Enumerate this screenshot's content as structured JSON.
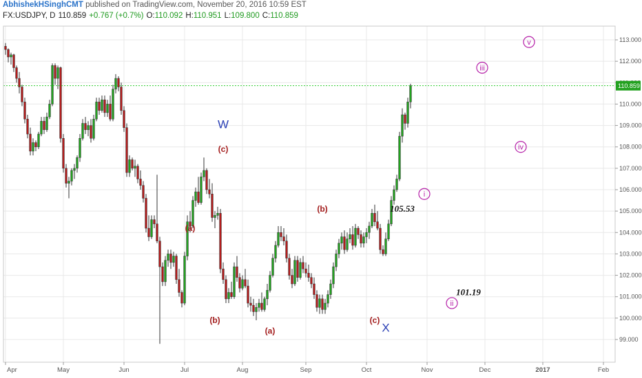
{
  "header": {
    "author": "AbhishekHSinghCMT",
    "published_text": "published on TradingView.com, November 20, 2016 10:59 EST",
    "symbol": "FX:USDJPY, D",
    "last": "110.859",
    "change": "+0.767 (+0.7%)",
    "o_label": "O:",
    "o": "110.092",
    "h_label": "H:",
    "h": "110.951",
    "l_label": "L:",
    "l": "109.800",
    "c_label": "C:",
    "c": "110.859"
  },
  "colors": {
    "up": "#22a11f",
    "down": "#b31b1b",
    "wick": "#333333",
    "grid": "#e8e8e8",
    "axis_text": "#555555",
    "wave_red": "#a31d1d",
    "wave_blue": "#2a3fb5",
    "wave_magenta": "#b51fa8",
    "price_line": "#2ecc2e",
    "price_tag": "#22a11f"
  },
  "chart_data": {
    "type": "candlestick",
    "symbol": "FX:USDJPY",
    "timeframe": "D",
    "ylim": [
      98.5,
      113.5
    ],
    "y_ticks": [
      99,
      100,
      101,
      102,
      103,
      104,
      105,
      106,
      107,
      108,
      109,
      110,
      111,
      112,
      113
    ],
    "y_tick_labels": [
      "99.000",
      "100.000",
      "101.000",
      "102.000",
      "103.000",
      "104.000",
      "105.000",
      "106.000",
      "107.000",
      "108.000",
      "109.000",
      "110.000",
      "111.000",
      "112.000",
      "113.000"
    ],
    "x_labels": [
      "Apr",
      "May",
      "Jun",
      "Jul",
      "Aug",
      "Sep",
      "Oct",
      "Nov",
      "Dec",
      "2017",
      "Feb"
    ],
    "x_label_bars": [
      0,
      21,
      43,
      65,
      86,
      109,
      131,
      153,
      174,
      195,
      217
    ],
    "total_slots": 222,
    "grid": true,
    "last_price": 110.859,
    "last_price_label": "110.859",
    "candles": [
      [
        112.7,
        112.85,
        112.3,
        112.55
      ],
      [
        112.55,
        112.6,
        111.95,
        112.2
      ],
      [
        112.2,
        112.4,
        111.85,
        112.3
      ],
      [
        112.3,
        112.35,
        111.5,
        111.7
      ],
      [
        111.7,
        111.8,
        111.0,
        111.2
      ],
      [
        111.2,
        111.5,
        110.5,
        110.8
      ],
      [
        110.8,
        110.9,
        109.9,
        110.1
      ],
      [
        110.1,
        110.3,
        109.1,
        109.3
      ],
      [
        109.3,
        109.5,
        108.4,
        108.6
      ],
      [
        108.6,
        108.9,
        107.6,
        107.8
      ],
      [
        107.8,
        108.4,
        107.6,
        108.2
      ],
      [
        108.2,
        108.3,
        107.8,
        108.0
      ],
      [
        108.0,
        108.7,
        107.9,
        108.6
      ],
      [
        108.6,
        109.4,
        108.5,
        109.2
      ],
      [
        109.2,
        109.4,
        108.6,
        108.8
      ],
      [
        108.8,
        109.6,
        108.7,
        109.4
      ],
      [
        109.4,
        110.2,
        109.3,
        110.0
      ],
      [
        110.0,
        111.9,
        109.9,
        111.8
      ],
      [
        111.8,
        111.9,
        110.9,
        111.2
      ],
      [
        111.2,
        111.8,
        110.7,
        111.7
      ],
      [
        111.7,
        111.75,
        108.2,
        108.4
      ],
      [
        108.4,
        108.6,
        106.8,
        107.0
      ],
      [
        107.0,
        107.2,
        106.1,
        106.3
      ],
      [
        106.3,
        106.6,
        105.6,
        106.4
      ],
      [
        106.4,
        107.0,
        106.2,
        106.9
      ],
      [
        106.9,
        107.2,
        106.5,
        107.0
      ],
      [
        107.0,
        107.6,
        106.8,
        107.5
      ],
      [
        107.5,
        108.6,
        107.3,
        108.4
      ],
      [
        108.4,
        109.3,
        108.3,
        109.1
      ],
      [
        109.1,
        109.4,
        108.6,
        108.8
      ],
      [
        108.8,
        109.2,
        108.5,
        109.0
      ],
      [
        109.0,
        109.3,
        108.2,
        108.4
      ],
      [
        108.4,
        109.5,
        108.3,
        109.3
      ],
      [
        109.3,
        110.3,
        109.2,
        110.1
      ],
      [
        110.1,
        110.3,
        109.5,
        109.7
      ],
      [
        109.7,
        110.4,
        109.6,
        110.2
      ],
      [
        110.2,
        110.4,
        109.4,
        109.6
      ],
      [
        109.6,
        110.2,
        109.4,
        110.0
      ],
      [
        110.0,
        110.4,
        109.2,
        109.3
      ],
      [
        109.3,
        110.9,
        109.2,
        110.7
      ],
      [
        110.7,
        111.4,
        110.5,
        111.2
      ],
      [
        111.2,
        111.3,
        110.6,
        110.8
      ],
      [
        110.8,
        111.0,
        109.5,
        109.7
      ],
      [
        109.7,
        109.9,
        108.7,
        108.9
      ],
      [
        108.9,
        109.1,
        106.6,
        106.8
      ],
      [
        106.8,
        107.6,
        106.6,
        107.4
      ],
      [
        107.4,
        107.5,
        106.9,
        107.0
      ],
      [
        107.0,
        107.4,
        106.6,
        107.1
      ],
      [
        107.1,
        107.2,
        106.3,
        106.5
      ],
      [
        106.5,
        106.9,
        106.0,
        106.2
      ],
      [
        106.2,
        106.4,
        105.4,
        105.6
      ],
      [
        105.6,
        105.8,
        104.0,
        104.2
      ],
      [
        104.2,
        104.8,
        103.6,
        103.8
      ],
      [
        103.8,
        104.8,
        103.7,
        104.6
      ],
      [
        104.6,
        104.8,
        104.2,
        104.4
      ],
      [
        104.4,
        106.7,
        103.5,
        103.6
      ],
      [
        103.6,
        103.8,
        98.8,
        102.4
      ],
      [
        102.4,
        102.6,
        101.5,
        101.7
      ],
      [
        101.7,
        102.9,
        101.5,
        102.7
      ],
      [
        102.7,
        103.2,
        102.4,
        103.0
      ],
      [
        103.0,
        103.2,
        102.3,
        102.6
      ],
      [
        102.6,
        103.1,
        102.4,
        102.9
      ],
      [
        102.9,
        103.0,
        101.6,
        101.8
      ],
      [
        101.8,
        102.3,
        101.0,
        101.2
      ],
      [
        101.2,
        101.3,
        100.5,
        100.7
      ],
      [
        100.7,
        103.1,
        100.6,
        102.9
      ],
      [
        102.9,
        104.8,
        102.7,
        104.5
      ],
      [
        104.5,
        105.0,
        104.0,
        104.3
      ],
      [
        104.3,
        105.7,
        104.2,
        105.5
      ],
      [
        105.5,
        106.1,
        105.2,
        105.9
      ],
      [
        105.9,
        106.6,
        105.3,
        105.4
      ],
      [
        105.4,
        106.8,
        105.3,
        106.6
      ],
      [
        106.6,
        107.5,
        106.4,
        106.9
      ],
      [
        106.9,
        107.0,
        105.8,
        106.0
      ],
      [
        106.0,
        106.5,
        105.6,
        105.8
      ],
      [
        105.8,
        106.3,
        104.5,
        104.7
      ],
      [
        104.7,
        105.0,
        104.2,
        104.8
      ],
      [
        104.8,
        105.2,
        104.6,
        104.9
      ],
      [
        104.9,
        105.1,
        102.1,
        102.3
      ],
      [
        102.3,
        102.6,
        101.6,
        101.8
      ],
      [
        101.8,
        102.0,
        100.7,
        100.9
      ],
      [
        100.9,
        101.4,
        100.7,
        101.2
      ],
      [
        101.2,
        101.7,
        100.9,
        101.0
      ],
      [
        101.0,
        102.6,
        100.9,
        102.4
      ],
      [
        102.4,
        102.9,
        101.7,
        101.9
      ],
      [
        101.9,
        102.1,
        101.2,
        101.4
      ],
      [
        101.4,
        102.0,
        101.3,
        101.8
      ],
      [
        101.8,
        102.3,
        101.4,
        101.5
      ],
      [
        101.5,
        101.8,
        100.5,
        100.7
      ],
      [
        100.7,
        101.0,
        100.3,
        100.6
      ],
      [
        100.6,
        100.9,
        100.1,
        100.3
      ],
      [
        100.3,
        100.7,
        99.9,
        100.5
      ],
      [
        100.5,
        100.9,
        100.3,
        100.7
      ],
      [
        100.7,
        101.2,
        100.3,
        100.4
      ],
      [
        100.4,
        101.0,
        100.3,
        100.9
      ],
      [
        100.9,
        101.6,
        100.6,
        101.3
      ],
      [
        101.3,
        102.2,
        101.2,
        102.0
      ],
      [
        102.0,
        103.0,
        101.9,
        102.8
      ],
      [
        102.8,
        103.6,
        102.6,
        103.4
      ],
      [
        103.4,
        104.3,
        103.3,
        104.0
      ],
      [
        104.0,
        104.3,
        103.6,
        103.8
      ],
      [
        103.8,
        104.2,
        103.4,
        103.6
      ],
      [
        103.6,
        103.9,
        102.6,
        102.8
      ],
      [
        102.8,
        103.0,
        101.8,
        102.0
      ],
      [
        102.0,
        102.3,
        101.4,
        101.6
      ],
      [
        101.6,
        102.9,
        101.5,
        102.7
      ],
      [
        102.7,
        102.9,
        101.7,
        101.9
      ],
      [
        101.9,
        102.8,
        101.8,
        102.6
      ],
      [
        102.6,
        102.9,
        102.1,
        102.3
      ],
      [
        102.3,
        102.6,
        101.9,
        102.1
      ],
      [
        102.1,
        102.5,
        101.7,
        101.9
      ],
      [
        101.9,
        102.1,
        101.4,
        101.6
      ],
      [
        101.6,
        101.9,
        100.9,
        101.1
      ],
      [
        101.1,
        101.3,
        100.3,
        100.5
      ],
      [
        100.5,
        101.1,
        100.2,
        100.9
      ],
      [
        100.9,
        101.1,
        100.2,
        100.4
      ],
      [
        100.4,
        100.9,
        100.2,
        100.7
      ],
      [
        100.7,
        101.3,
        100.5,
        101.1
      ],
      [
        101.1,
        101.8,
        100.9,
        101.6
      ],
      [
        101.6,
        102.6,
        101.4,
        102.4
      ],
      [
        102.4,
        103.2,
        102.2,
        103.0
      ],
      [
        103.0,
        103.7,
        102.8,
        103.5
      ],
      [
        103.5,
        104.0,
        103.2,
        103.8
      ],
      [
        103.8,
        104.1,
        103.0,
        103.2
      ],
      [
        103.2,
        104.0,
        103.1,
        103.7
      ],
      [
        103.7,
        104.2,
        103.5,
        103.9
      ],
      [
        103.9,
        104.3,
        103.2,
        103.4
      ],
      [
        103.4,
        104.4,
        103.3,
        104.2
      ],
      [
        104.2,
        104.3,
        103.7,
        103.9
      ],
      [
        103.9,
        104.1,
        103.3,
        103.5
      ],
      [
        103.5,
        104.0,
        103.3,
        103.8
      ],
      [
        103.8,
        104.2,
        103.5,
        104.0
      ],
      [
        104.0,
        104.5,
        103.7,
        104.3
      ],
      [
        104.3,
        105.1,
        104.2,
        104.9
      ],
      [
        104.9,
        105.3,
        104.3,
        104.5
      ],
      [
        104.5,
        105.0,
        104.1,
        104.2
      ],
      [
        104.2,
        104.4,
        103.0,
        103.2
      ],
      [
        103.2,
        103.4,
        102.9,
        103.0
      ],
      [
        103.0,
        104.0,
        102.9,
        103.7
      ],
      [
        103.7,
        104.6,
        103.6,
        104.4
      ],
      [
        104.4,
        105.7,
        104.3,
        105.5
      ],
      [
        105.5,
        106.2,
        105.3,
        106.0
      ],
      [
        106.0,
        106.7,
        105.9,
        106.5
      ],
      [
        106.5,
        108.7,
        106.4,
        108.5
      ],
      [
        108.5,
        109.8,
        108.2,
        109.5
      ],
      [
        109.5,
        109.6,
        108.8,
        109.1
      ],
      [
        109.1,
        110.3,
        108.9,
        110.1
      ],
      [
        110.1,
        110.95,
        109.8,
        110.859
      ]
    ],
    "annotations": [
      {
        "text": "W",
        "style": "blue",
        "bar": 79,
        "price": 109.0
      },
      {
        "text": "(c)",
        "style": "red",
        "bar": 79,
        "price": 107.9
      },
      {
        "text": "(a)",
        "style": "red",
        "bar": 67,
        "price": 104.2
      },
      {
        "text": "(b)",
        "style": "red",
        "bar": 76,
        "price": 99.9
      },
      {
        "text": "(a)",
        "style": "red",
        "bar": 96,
        "price": 99.4
      },
      {
        "text": "(b)",
        "style": "red",
        "bar": 115,
        "price": 105.1
      },
      {
        "text": "(c)",
        "style": "red",
        "bar": 134,
        "price": 99.9
      },
      {
        "text": "X",
        "style": "blue",
        "bar": 138,
        "price": 99.5
      },
      {
        "text": "105.53",
        "style": "black",
        "bar": 144,
        "price": 105.1
      },
      {
        "text": "101.19",
        "style": "black",
        "bar": 168,
        "price": 101.2
      },
      {
        "text": "i",
        "style": "circle",
        "bar": 152,
        "price": 105.8
      },
      {
        "text": "ii",
        "style": "circle",
        "bar": 162,
        "price": 100.7
      },
      {
        "text": "iii",
        "style": "circle",
        "bar": 173,
        "price": 111.7
      },
      {
        "text": "iv",
        "style": "circle",
        "bar": 187,
        "price": 108.0
      },
      {
        "text": "v",
        "style": "circle",
        "bar": 190,
        "price": 112.9
      }
    ]
  }
}
